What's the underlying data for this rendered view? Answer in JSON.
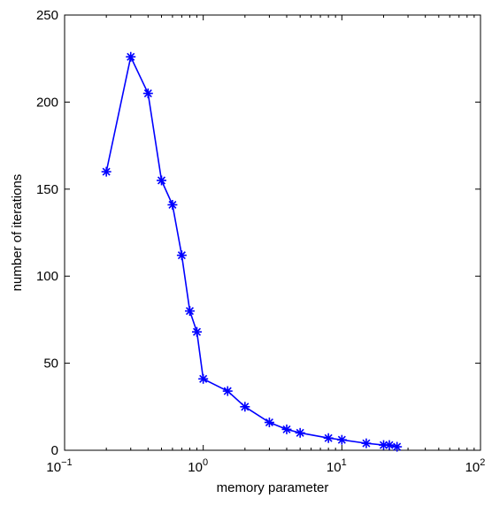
{
  "chart_data": {
    "type": "line",
    "title": "",
    "xlabel": "memory parameter",
    "ylabel": "number of iterations",
    "xscale": "log",
    "xlim": [
      0.1,
      100
    ],
    "ylim": [
      0,
      250
    ],
    "grid": false,
    "legend": "none",
    "x_ticks": [
      {
        "value": 0.1,
        "base": "10",
        "exp": "−1"
      },
      {
        "value": 1,
        "base": "10",
        "exp": "0"
      },
      {
        "value": 10,
        "base": "10",
        "exp": "1"
      },
      {
        "value": 100,
        "base": "10",
        "exp": "2"
      }
    ],
    "y_ticks": [
      {
        "value": 0,
        "label": "0"
      },
      {
        "value": 50,
        "label": "50"
      },
      {
        "value": 100,
        "label": "100"
      },
      {
        "value": 150,
        "label": "150"
      },
      {
        "value": 200,
        "label": "200"
      },
      {
        "value": 250,
        "label": "250"
      }
    ],
    "series": [
      {
        "color": "#0000ff",
        "marker": "asterisk",
        "x": [
          0.2,
          0.3,
          0.4,
          0.5,
          0.6,
          0.7,
          0.8,
          0.9,
          1,
          1.5,
          2,
          3,
          4,
          5,
          8,
          10,
          15,
          20,
          22,
          25
        ],
        "y": [
          160,
          226,
          205,
          155,
          141,
          112,
          80,
          68,
          41,
          34,
          25,
          16,
          12,
          10,
          7,
          6,
          4,
          3,
          3,
          2
        ]
      }
    ]
  }
}
